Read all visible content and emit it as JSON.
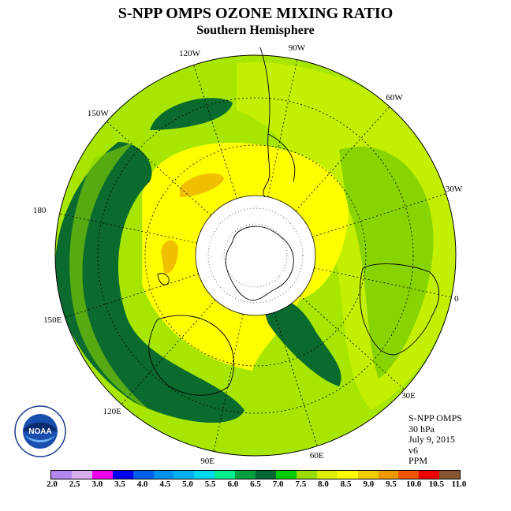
{
  "title": "S-NPP OMPS OZONE MIXING RATIO",
  "subtitle": "Southern Hemisphere",
  "longitude_labels": [
    "90W",
    "60W",
    "30W",
    "0",
    "30E",
    "60E",
    "90E",
    "120E",
    "150E",
    "180",
    "150W",
    "120W"
  ],
  "meta": {
    "instrument": "S-NPP OMPS",
    "pressure": "30 hPa",
    "date": "July 9, 2015",
    "version": "v6",
    "units": "PPM"
  },
  "logo_text": "NOAA",
  "colorbar": {
    "ticks": [
      "2.0",
      "2.5",
      "3.0",
      "3.5",
      "4.0",
      "4.5",
      "5.0",
      "5.5",
      "6.0",
      "6.5",
      "7.0",
      "7.5",
      "8.0",
      "8.5",
      "9.0",
      "9.5",
      "10.0",
      "10.5",
      "11.0"
    ],
    "colors": [
      "#b388ee",
      "#d8b0f0",
      "#ee00ee",
      "#0000ee",
      "#0060ee",
      "#0090ee",
      "#00b0f0",
      "#00d8ee",
      "#00ee90",
      "#00a040",
      "#006633",
      "#00cc00",
      "#99dd00",
      "#ddee00",
      "#ffff00",
      "#eecc00",
      "#ee9900",
      "#ee5500",
      "#ee0000",
      "#885533"
    ]
  }
}
